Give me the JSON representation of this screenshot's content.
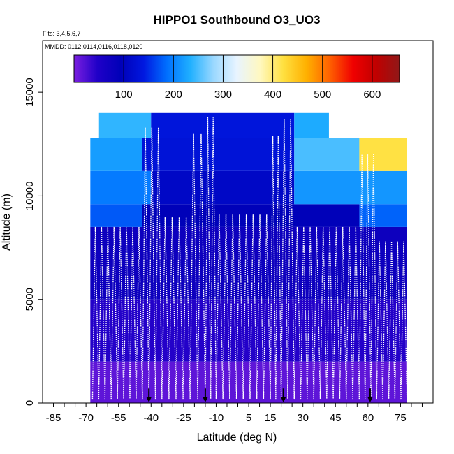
{
  "chart_data": {
    "type": "heatmap",
    "title": "HIPPO1 Southbound O3_UO3",
    "subtitle_flights": "Flts: 3,4,5,6,7",
    "subtitle_dates": "MMDD: 0112,0114,0116,0118,0120",
    "xlabel": "Latitude (deg N)",
    "ylabel": "Altitude (m)",
    "xlim": [
      -90,
      90
    ],
    "ylim": [
      0,
      17500
    ],
    "x_ticks": [
      -85,
      -70,
      -55,
      -40,
      -25,
      -10,
      5,
      15,
      30,
      45,
      60,
      75
    ],
    "x_tick_labels": [
      "-85",
      "-70",
      "-55",
      "-40",
      "-25",
      "-10",
      "5",
      "15",
      "30",
      "45",
      "60",
      "75"
    ],
    "y_ticks": [
      0,
      5000,
      10000,
      15000
    ],
    "y_tick_labels": [
      "0",
      "5000",
      "10000",
      "15000"
    ],
    "colorbar": {
      "min": 0,
      "max": 655,
      "ticks": [
        100,
        200,
        300,
        400,
        500,
        600
      ],
      "tick_labels": [
        "100",
        "200",
        "300",
        "400",
        "500",
        "600"
      ],
      "colors": [
        "#7b1fe0",
        "#2000c8",
        "#0000b8",
        "#0018e0",
        "#0070ff",
        "#20b0ff",
        "#9ad8ff",
        "#e8f4ff",
        "#fff8c0",
        "#ffe040",
        "#ffb000",
        "#ff6000",
        "#f00000",
        "#c00000",
        "#901818"
      ]
    },
    "flight_dividers_lat": [
      -41,
      -15,
      21,
      61
    ],
    "profile_top_altitudes": [
      {
        "lat_start": -67,
        "lat_end": -44,
        "top": 8500
      },
      {
        "lat_start": -44,
        "lat_end": -35,
        "top": 13300
      },
      {
        "lat_start": -35,
        "lat_end": -22,
        "top": 9000
      },
      {
        "lat_start": -22,
        "lat_end": -15,
        "top": 13000
      },
      {
        "lat_start": -15,
        "lat_end": -10,
        "top": 13800
      },
      {
        "lat_start": -10,
        "lat_end": 15,
        "top": 9100
      },
      {
        "lat_start": 15,
        "lat_end": 20,
        "top": 12900
      },
      {
        "lat_start": 20,
        "lat_end": 26,
        "top": 13700
      },
      {
        "lat_start": 26,
        "lat_end": 56,
        "top": 8500
      },
      {
        "lat_start": 56,
        "lat_end": 64,
        "top": 12000
      },
      {
        "lat_start": 64,
        "lat_end": 78,
        "top": 7800
      }
    ],
    "field_rows": [
      {
        "alt_from": 0,
        "alt_to": 2000,
        "lat_from": -68,
        "lat_to": 78,
        "value": 15
      },
      {
        "alt_from": 2000,
        "alt_to": 5000,
        "lat_from": -68,
        "lat_to": 78,
        "value": 45
      },
      {
        "alt_from": 5000,
        "alt_to": 8500,
        "lat_from": -68,
        "lat_to": 78,
        "value": 75
      },
      {
        "alt_from": 8500,
        "alt_to": 9600,
        "lat_from": -68,
        "lat_to": -44,
        "value": 175
      },
      {
        "alt_from": 8500,
        "alt_to": 9600,
        "lat_from": -44,
        "lat_to": 56,
        "value": 95
      },
      {
        "alt_from": 8500,
        "alt_to": 9600,
        "lat_from": 56,
        "lat_to": 78,
        "value": 180
      },
      {
        "alt_from": 9600,
        "alt_to": 11200,
        "lat_from": -68,
        "lat_to": -40,
        "value": 195
      },
      {
        "alt_from": 9600,
        "alt_to": 11200,
        "lat_from": -40,
        "lat_to": 26,
        "value": 110
      },
      {
        "alt_from": 9600,
        "alt_to": 11200,
        "lat_from": 26,
        "lat_to": 78,
        "value": 215
      },
      {
        "alt_from": 11200,
        "alt_to": 12800,
        "lat_from": -68,
        "lat_to": -44,
        "value": 220
      },
      {
        "alt_from": 11200,
        "alt_to": 12800,
        "lat_from": -44,
        "lat_to": 26,
        "value": 130
      },
      {
        "alt_from": 11200,
        "alt_to": 12800,
        "lat_from": 26,
        "lat_to": 56,
        "value": 250
      },
      {
        "alt_from": 11200,
        "alt_to": 12800,
        "lat_from": 56,
        "lat_to": 78,
        "value": 420
      },
      {
        "alt_from": 12800,
        "alt_to": 14000,
        "lat_from": -64,
        "lat_to": -40,
        "value": 240
      },
      {
        "alt_from": 12800,
        "alt_to": 14000,
        "lat_from": -40,
        "lat_to": 26,
        "value": 135
      },
      {
        "alt_from": 12800,
        "alt_to": 14000,
        "lat_from": 26,
        "lat_to": 42,
        "value": 230
      }
    ]
  }
}
